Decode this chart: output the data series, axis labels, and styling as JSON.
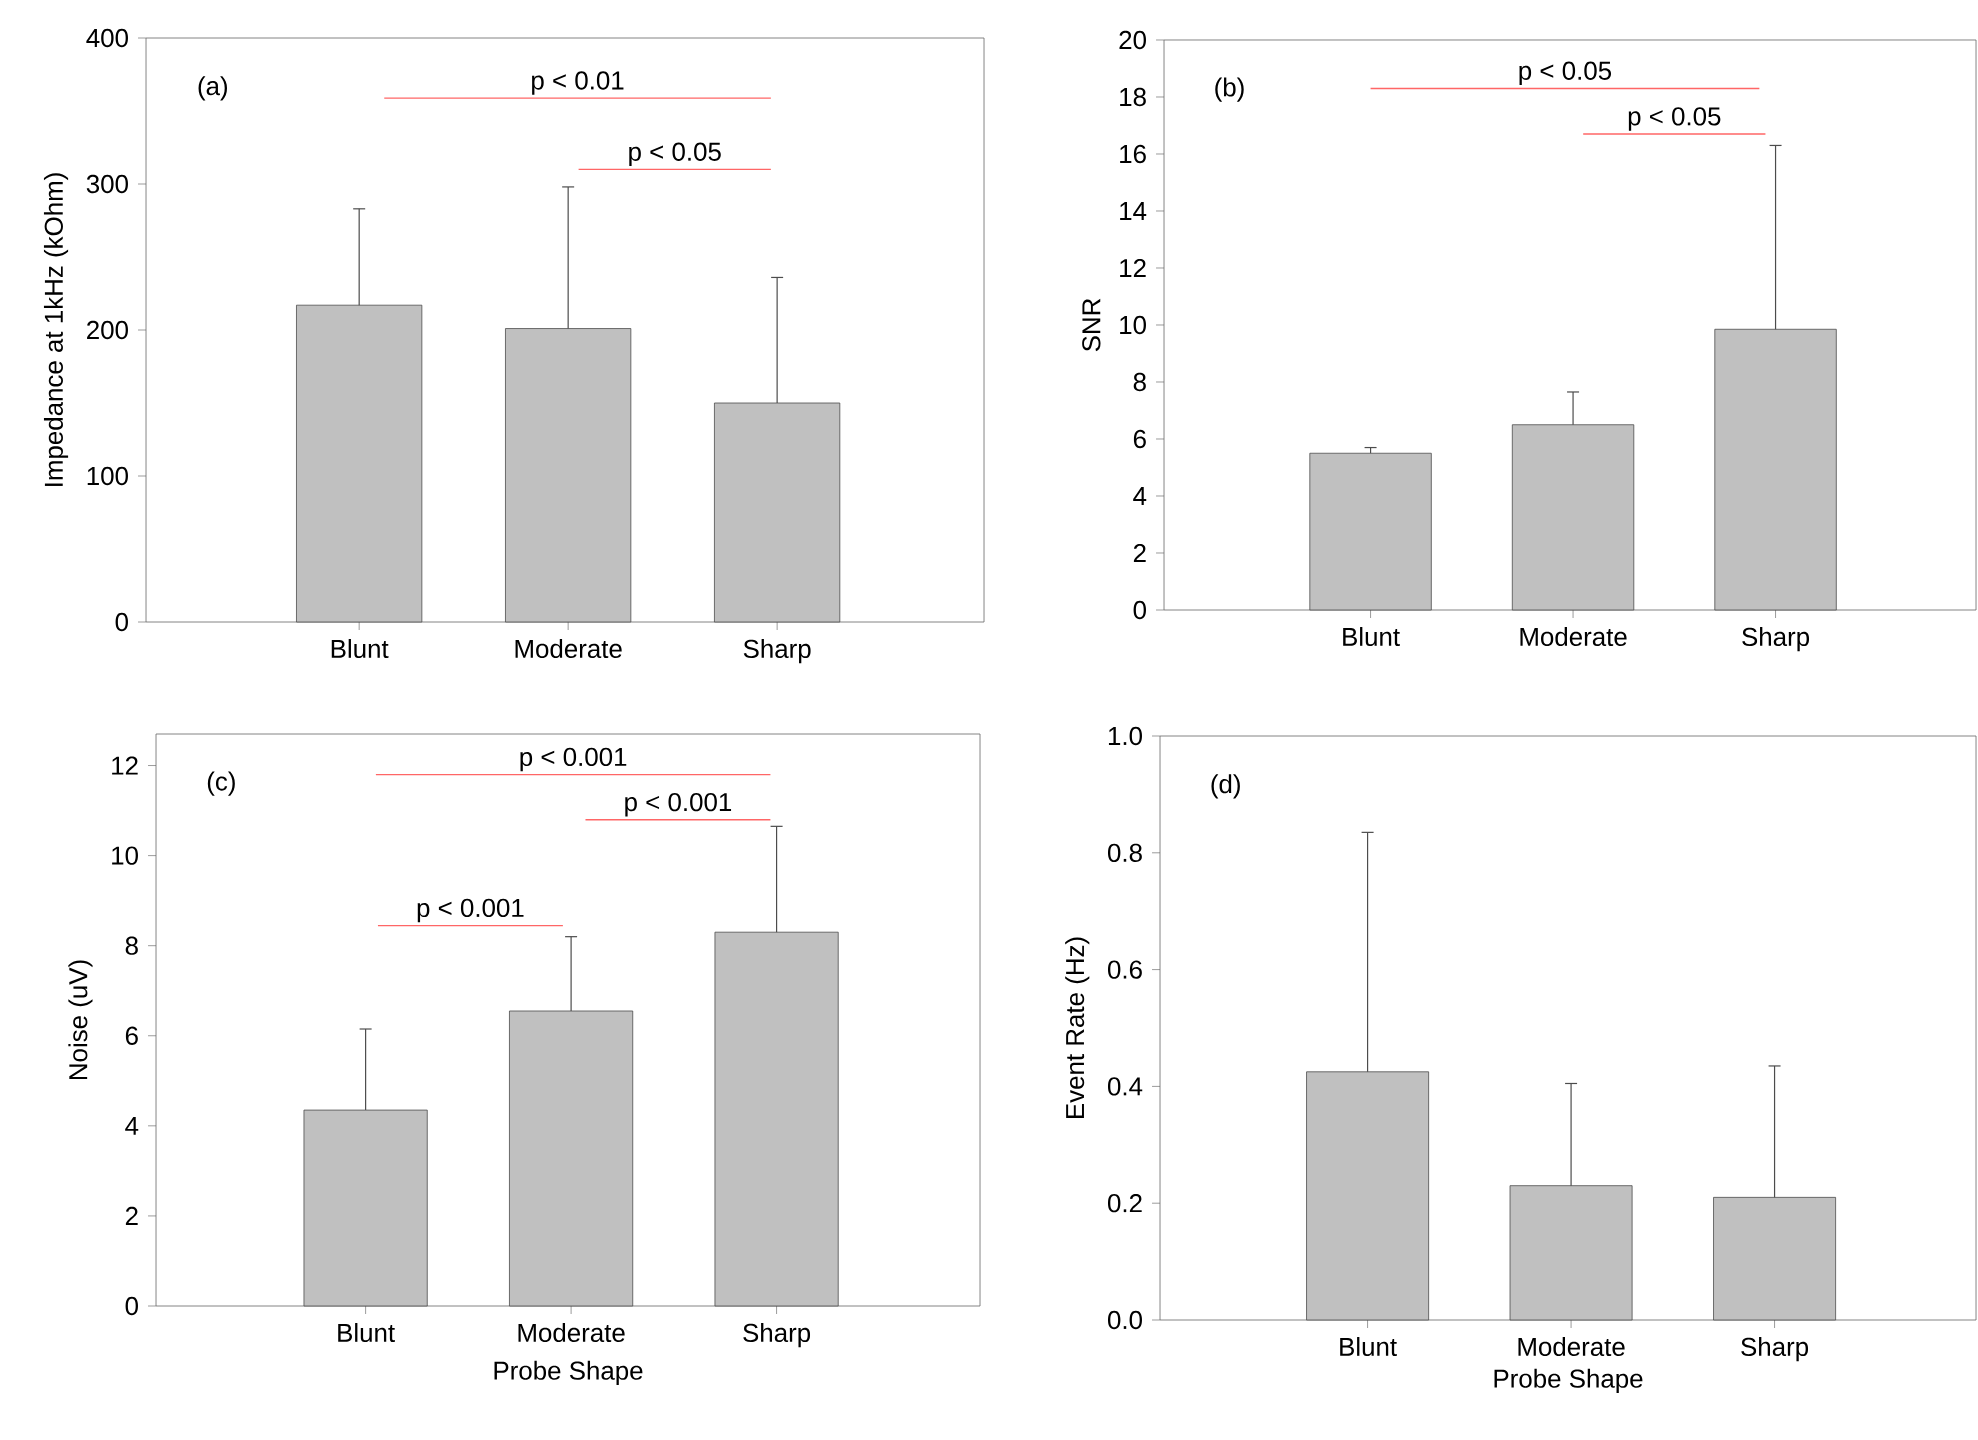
{
  "chart_data": [
    {
      "type": "bar",
      "categories": [
        "Blunt",
        "Moderate",
        "Sharp"
      ],
      "values": [
        217,
        201,
        150
      ],
      "errors": [
        [
          217,
          283
        ],
        [
          201,
          298
        ],
        [
          150,
          236
        ]
      ],
      "color": "#c0c0c0",
      "ylabel": "Impedance at 1kHz (kOhm)",
      "ylim": [
        0,
        400
      ],
      "yticks": [
        0,
        100,
        200,
        300,
        400
      ],
      "grid": false,
      "annotations": [
        "(a)",
        "p < 0.01",
        "p < 0.05"
      ]
    },
    {
      "type": "bar",
      "categories": [
        "Blunt",
        "Moderate",
        "Sharp"
      ],
      "values": [
        5.5,
        6.5,
        9.85
      ],
      "errors": [
        [
          5.5,
          5.7
        ],
        [
          6.5,
          7.65
        ],
        [
          9.85,
          16.3
        ]
      ],
      "color": "#c0c0c0",
      "ylabel": "SNR",
      "ylim": [
        0,
        20
      ],
      "yticks": [
        0,
        2,
        4,
        6,
        8,
        10,
        12,
        14,
        16,
        18,
        20
      ],
      "grid": false,
      "annotations": [
        "(b)",
        "p < 0.05",
        "p < 0.05"
      ]
    },
    {
      "type": "bar",
      "categories": [
        "Blunt",
        "Moderate",
        "Sharp"
      ],
      "values": [
        4.35,
        6.55,
        8.3
      ],
      "errors": [
        [
          4.35,
          6.15
        ],
        [
          6.55,
          8.2
        ],
        [
          8.3,
          10.65
        ]
      ],
      "color": "#c0c0c0",
      "xlabel": "Probe Shape",
      "ylabel": "Noise (uV)",
      "ylim": [
        0,
        12.7
      ],
      "yticks": [
        0,
        2,
        4,
        6,
        8,
        10,
        12
      ],
      "grid": false,
      "annotations": [
        "(c)",
        "p < 0.001",
        "p < 0.001",
        "p < 0.001"
      ]
    },
    {
      "type": "bar",
      "categories": [
        "Blunt",
        "Moderate",
        "Sharp"
      ],
      "values": [
        0.425,
        0.23,
        0.21
      ],
      "errors": [
        [
          0.425,
          0.835
        ],
        [
          0.23,
          0.405
        ],
        [
          0.21,
          0.435
        ]
      ],
      "color": "#c0c0c0",
      "xlabel": "Probe Shape",
      "ylabel": "Event Rate (Hz)",
      "ylim": [
        0,
        1.0
      ],
      "yticks": [
        {
          "value": 0,
          "label": "0.0"
        },
        {
          "value": 0.2,
          "label": "0.2"
        },
        {
          "value": 0.4,
          "label": "0.4"
        },
        {
          "value": 0.6,
          "label": "0.6"
        },
        {
          "value": 0.8,
          "label": "0.8"
        },
        {
          "value": 1.0,
          "label": "1.0"
        }
      ],
      "grid": false,
      "annotations": [
        "(d)"
      ]
    }
  ]
}
